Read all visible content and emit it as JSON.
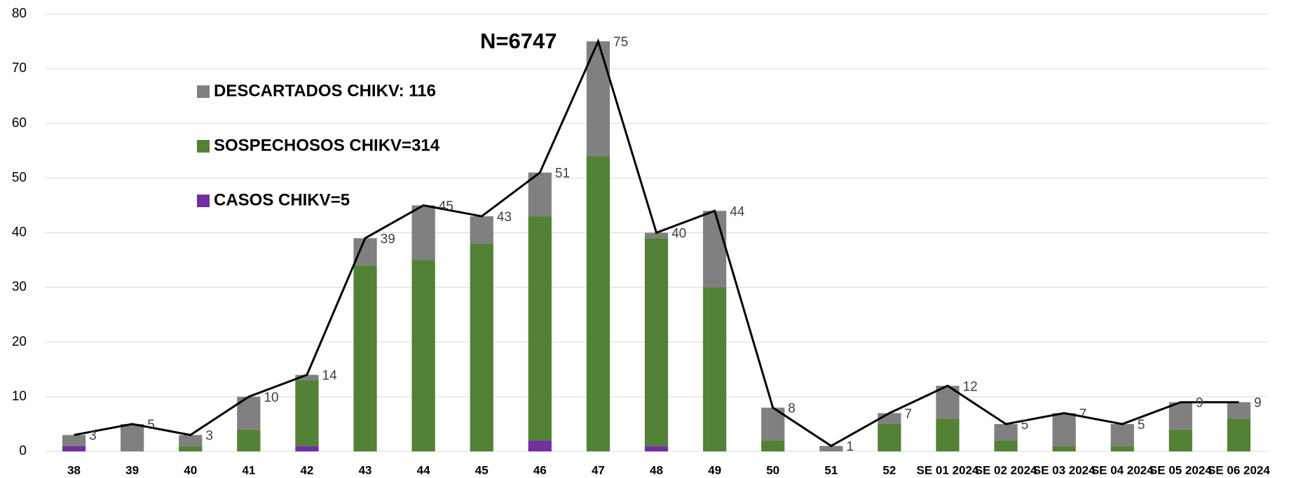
{
  "chart_data": {
    "type": "stacked_bar_line",
    "annotation": "N=6747",
    "categories": [
      "38",
      "39",
      "40",
      "41",
      "42",
      "43",
      "44",
      "45",
      "46",
      "47",
      "48",
      "49",
      "50",
      "51",
      "52",
      "SE 01 2024",
      "SE 02 2024",
      "SE 03 2024",
      "SE 04 2024",
      "SE 05 2024",
      "SE 06 2024"
    ],
    "series": [
      {
        "name": "CASOS CHIKV=5",
        "color": "#7030a0",
        "values": [
          1,
          0,
          0,
          0,
          1,
          0,
          0,
          0,
          2,
          0,
          1,
          0,
          0,
          0,
          0,
          0,
          0,
          0,
          0,
          0,
          0
        ]
      },
      {
        "name": "SOSPECHOSOS CHIKV=314",
        "color": "#538135",
        "values": [
          0,
          0,
          1,
          4,
          12,
          34,
          35,
          38,
          41,
          54,
          38,
          30,
          2,
          0,
          5,
          6,
          2,
          1,
          1,
          4,
          6
        ]
      },
      {
        "name": "DESCARTADOS CHIKV: 116",
        "color": "#808080",
        "values": [
          2,
          5,
          2,
          6,
          1,
          5,
          10,
          5,
          8,
          21,
          1,
          14,
          6,
          1,
          2,
          6,
          3,
          6,
          4,
          5,
          3
        ]
      }
    ],
    "line": {
      "color": "#000000",
      "values": [
        3,
        5,
        3,
        10,
        14,
        39,
        45,
        43,
        51,
        75,
        40,
        44,
        8,
        1,
        7,
        12,
        5,
        7,
        5,
        9,
        9
      ]
    },
    "ylim": [
      0,
      80
    ],
    "yticks": [
      0,
      10,
      20,
      30,
      40,
      50,
      60,
      70,
      80
    ],
    "grid": true
  }
}
